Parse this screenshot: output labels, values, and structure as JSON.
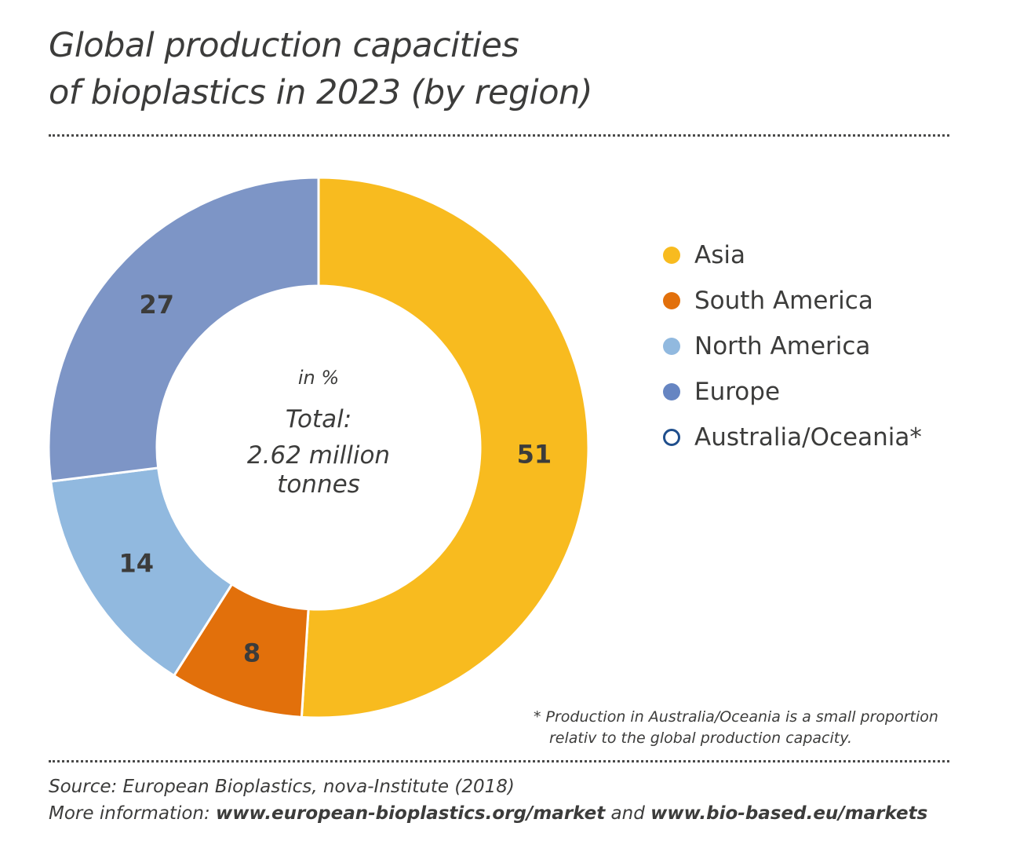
{
  "title": {
    "line1": "Global production capacities",
    "line2": "of bioplastics in 2023 (by region)"
  },
  "center": {
    "unit": "in %",
    "total_label": "Total:",
    "total_value": "2.62 million",
    "total_unit": "tonnes"
  },
  "colors": {
    "asia": "#f8bb1f",
    "south_america": "#e2700b",
    "north_america": "#91b9df",
    "europe": "#7d95c6",
    "australia_oceania": "#1f4e8c",
    "text": "#3c3c3b"
  },
  "legend": [
    {
      "label": "Asia",
      "color": "#f8bb1f",
      "style": "filled"
    },
    {
      "label": "South America",
      "color": "#e2700b",
      "style": "filled"
    },
    {
      "label": "North America",
      "color": "#91b9df",
      "style": "filled"
    },
    {
      "label": "Europe",
      "color": "#6685c2",
      "style": "filled"
    },
    {
      "label": "Australia/Oceania*",
      "color": "#1f4e8c",
      "style": "outline"
    }
  ],
  "chart_data": {
    "type": "pie",
    "variant": "donut",
    "labels": [
      "Asia",
      "South America",
      "North America",
      "Europe"
    ],
    "values": [
      51,
      8,
      14,
      27
    ],
    "data_labels": [
      "51",
      "8",
      "14",
      "27"
    ],
    "colors": [
      "#f8bb1f",
      "#e2700b",
      "#91b9df",
      "#7d95c6"
    ],
    "unit": "in %",
    "start": "12 o'clock, clockwise",
    "legend_position": "right"
  },
  "footnote": {
    "line1": "* Production in Australia/Oceania is a small proportion",
    "line2": "relativ to the global production capacity."
  },
  "source": {
    "line1": "Source: European Bioplastics, nova-Institute (2018)",
    "more_prefix": "More information: ",
    "link1": "www.european-bioplastics.org/market",
    "and": " and ",
    "link2": "www.bio-based.eu/markets"
  }
}
